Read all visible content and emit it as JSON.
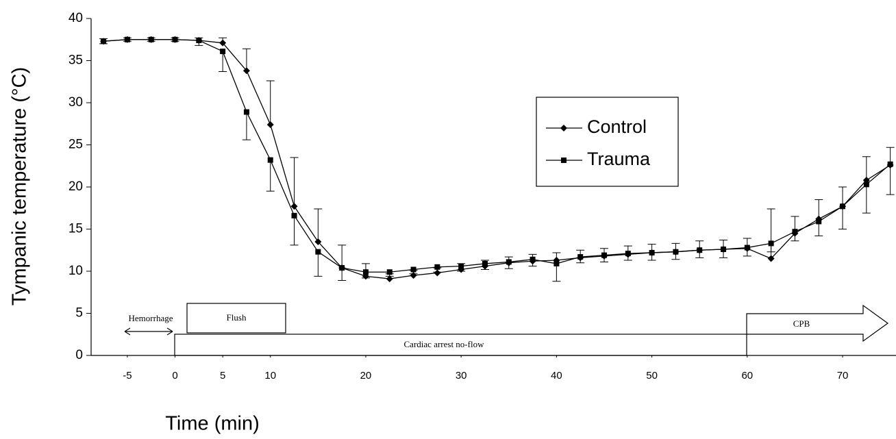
{
  "chart_data": {
    "type": "line",
    "x_label": "Time (min)",
    "y_label": "Tympanic temperature (°C)",
    "x": [
      -7.5,
      -5,
      -2.5,
      0,
      2.5,
      5,
      7.5,
      10,
      12.5,
      15,
      17.5,
      20,
      22.5,
      25,
      27.5,
      30,
      32.5,
      35,
      37.5,
      40,
      42.5,
      45,
      47.5,
      50,
      52.5,
      55,
      57.5,
      60,
      62.5,
      65,
      67.5,
      70,
      72.5,
      75
    ],
    "series": [
      {
        "name": "Control",
        "color": "#000000",
        "marker": "diamond",
        "values": [
          37.3,
          37.5,
          37.5,
          37.5,
          37.4,
          37.1,
          33.8,
          27.4,
          17.7,
          13.5,
          10.4,
          9.4,
          9.1,
          9.5,
          9.8,
          10.2,
          10.6,
          11.0,
          11.2,
          11.3,
          11.6,
          11.8,
          12.0,
          12.2,
          12.3,
          12.5,
          12.6,
          12.7,
          11.5,
          14.5,
          16.2,
          17.7,
          20.8,
          22.6
        ],
        "errors": [
          0.3,
          0.2,
          0.2,
          0.2,
          0.3,
          0.6,
          2.6,
          5.2,
          5.8,
          3.9,
          2.7,
          1.5,
          0.6,
          0.6,
          0.6,
          0.7,
          0.7,
          0.7,
          0.8,
          0.9,
          0.9,
          0.9,
          1.0,
          1.0,
          1.0,
          1.1,
          1.1,
          1.2,
          5.9,
          2.0,
          2.3,
          2.3,
          2.8,
          2.1
        ]
      },
      {
        "name": "Trauma",
        "color": "#000000",
        "marker": "square",
        "values": [
          37.3,
          37.5,
          37.5,
          37.5,
          37.4,
          36.1,
          28.9,
          23.2,
          16.6,
          12.3,
          10.4,
          9.9,
          9.9,
          10.2,
          10.5,
          10.6,
          10.9,
          11.1,
          11.4,
          10.9,
          11.7,
          11.9,
          12.1,
          12.2,
          12.3,
          12.5,
          12.6,
          12.8,
          13.3,
          14.7,
          15.9,
          17.7,
          20.3,
          22.7
        ],
        "errors": [
          0.3,
          0.2,
          0.2,
          0.2,
          0.6,
          2.4,
          3.3,
          3.7,
          3.5,
          2.9,
          1.5,
          0.7,
          0.5,
          0.5,
          0.6,
          0.6,
          0.7,
          0.8,
          0.8,
          2.1,
          0.7,
          0.8,
          0.8,
          0.9,
          0.9,
          0.9,
          1.0,
          1.0,
          1.0,
          1.1,
          1.7,
          2.7,
          3.4,
          3.6
        ]
      }
    ],
    "xlim": [
      -8.8,
      75.6
    ],
    "ylim": [
      0,
      40
    ],
    "xticks": [
      -5,
      0,
      5,
      10,
      20,
      30,
      40,
      50,
      60,
      70
    ],
    "yticks": [
      0,
      5,
      10,
      15,
      20,
      25,
      30,
      35,
      40
    ],
    "annotations": [
      "Hemorrhage",
      "Flush",
      "Cardiac arrest no-flow",
      "CPB"
    ]
  }
}
